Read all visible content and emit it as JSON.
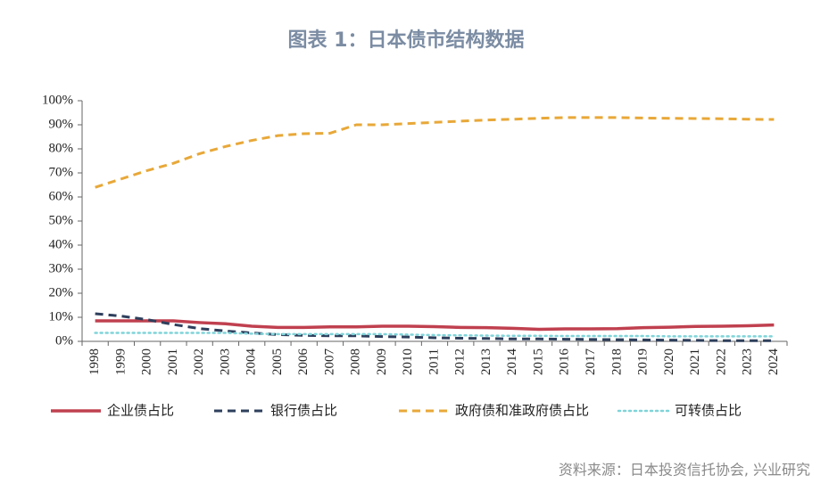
{
  "chart_data": {
    "type": "line",
    "title": "图表 1：日本债市结构数据",
    "source": "资料来源：日本投资信托协会, 兴业研究",
    "categories": [
      "1998",
      "1999",
      "2000",
      "2001",
      "2002",
      "2003",
      "2004",
      "2005",
      "2006",
      "2007",
      "2008",
      "2009",
      "2010",
      "2011",
      "2012",
      "2013",
      "2014",
      "2015",
      "2016",
      "2017",
      "2018",
      "2019",
      "2020",
      "2021",
      "2022",
      "2023",
      "2024"
    ],
    "series": [
      {
        "name": "企业债占比",
        "color": "#c0404f",
        "dash": "solid",
        "values": [
          8.5,
          8.5,
          8.5,
          8.5,
          7.8,
          7.3,
          6.3,
          5.8,
          5.8,
          6,
          6,
          6.3,
          6.3,
          6.1,
          5.8,
          5.7,
          5.4,
          5,
          5.2,
          5.2,
          5.3,
          5.7,
          5.9,
          6.2,
          6.3,
          6.5,
          6.8
        ]
      },
      {
        "name": "银行债占比",
        "color": "#2e3f5c",
        "dash": "dashed",
        "values": [
          11.5,
          10.5,
          9,
          7,
          5.3,
          4.3,
          3.5,
          2.8,
          2.5,
          2.3,
          2.3,
          2,
          1.8,
          1.5,
          1.3,
          1.2,
          1,
          1,
          0.9,
          0.8,
          0.7,
          0.6,
          0.5,
          0.4,
          0.3,
          0.3,
          0.3
        ]
      },
      {
        "name": "政府债和准政府债占比",
        "color": "#e8a838",
        "dash": "dashed",
        "values": [
          64,
          67.5,
          71,
          74,
          78,
          81,
          83.5,
          85.5,
          86.3,
          86.5,
          90,
          90,
          90.5,
          91,
          91.5,
          92,
          92.3,
          92.7,
          93,
          93,
          93,
          92.8,
          92.7,
          92.6,
          92.5,
          92.3,
          92.2
        ]
      },
      {
        "name": "可转债占比",
        "color": "#7fd4d9",
        "dash": "dotted",
        "values": [
          3.5,
          3.5,
          3.5,
          3.5,
          3.5,
          3.5,
          3.2,
          3,
          3,
          3,
          3,
          3,
          2.8,
          2.6,
          2.5,
          2.4,
          2.3,
          2.3,
          2.2,
          2.2,
          2.2,
          2.2,
          2.1,
          2.1,
          2.1,
          2.1,
          2.1
        ]
      }
    ],
    "ylim": [
      0,
      100
    ],
    "yticks": [
      {
        "value": 0,
        "label": "0%"
      },
      {
        "value": 10,
        "label": "10%"
      },
      {
        "value": 20,
        "label": "20%"
      },
      {
        "value": 30,
        "label": "30%"
      },
      {
        "value": 40,
        "label": "40%"
      },
      {
        "value": 50,
        "label": "50%"
      },
      {
        "value": 60,
        "label": "60%"
      },
      {
        "value": 70,
        "label": "70%"
      },
      {
        "value": 80,
        "label": "80%"
      },
      {
        "value": 90,
        "label": "90%"
      },
      {
        "value": 100,
        "label": "100%"
      }
    ],
    "legend": "bottom"
  }
}
